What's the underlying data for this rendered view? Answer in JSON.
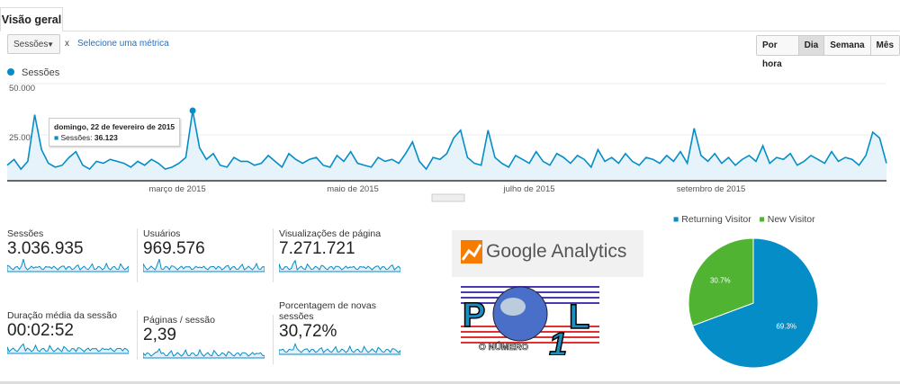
{
  "tab": {
    "label": "Visão geral"
  },
  "toolbar": {
    "metric": "Sessões",
    "remove": "x",
    "select_metric": "Selecione uma métrica",
    "granularity": [
      "Por hora",
      "Dia",
      "Semana",
      "Mês"
    ],
    "active": "Dia"
  },
  "chart_data": {
    "type": "area",
    "legend": "Sessões",
    "color": "#058dc7",
    "ylim": [
      0,
      50000
    ],
    "yticks": [
      "50.000",
      "25.000"
    ],
    "xticks": [
      "março de 2015",
      "maio de 2015",
      "julho de 2015",
      "setembro de 2015"
    ],
    "values": [
      8000,
      11000,
      6000,
      10000,
      34000,
      16000,
      9000,
      7000,
      8000,
      12000,
      15000,
      8000,
      6000,
      10000,
      9000,
      11000,
      10000,
      9000,
      7000,
      10000,
      8000,
      11000,
      9000,
      6000,
      7000,
      9000,
      12000,
      36123,
      17000,
      11000,
      14000,
      8000,
      7000,
      12000,
      10000,
      10000,
      8000,
      9000,
      13000,
      10000,
      7000,
      14000,
      11000,
      9000,
      11000,
      12000,
      8000,
      7000,
      13000,
      10000,
      15000,
      9000,
      8000,
      7000,
      12000,
      10000,
      11000,
      9000,
      14000,
      20000,
      10000,
      6000,
      12000,
      11000,
      14000,
      22000,
      26000,
      12000,
      9000,
      8000,
      26000,
      12000,
      9000,
      7000,
      13000,
      11000,
      9000,
      15000,
      10000,
      8000,
      14000,
      12000,
      9000,
      13000,
      11000,
      7000,
      16000,
      10000,
      12000,
      9000,
      14000,
      10000,
      8000,
      12000,
      11000,
      9000,
      13000,
      10000,
      15000,
      9000,
      27000,
      13000,
      10000,
      14000,
      9000,
      12000,
      8000,
      11000,
      13000,
      10000,
      18000,
      9000,
      12000,
      11000,
      14000,
      8000,
      10000,
      13000,
      11000,
      9000,
      15000,
      10000,
      12000,
      11000,
      8000,
      13000,
      25000,
      22000,
      9000
    ],
    "tooltip": {
      "date": "domingo, 22 de fevereiro de 2015",
      "label": "Sessões:",
      "value": "36.123"
    }
  },
  "metrics": [
    {
      "label": "Sessões",
      "value": "3.036.935"
    },
    {
      "label": "Usuários",
      "value": "969.576"
    },
    {
      "label": "Visualizações de página",
      "value": "7.271.721"
    },
    {
      "label": "Duração média da sessão",
      "value": "00:02:52"
    },
    {
      "label": "Páginas / sessão",
      "value": "2,39"
    },
    {
      "label": "Porcentagem de novas sessões",
      "value": "30,72%"
    }
  ],
  "logos": {
    "ga": "Google Analytics",
    "pol": "POL o número 1"
  },
  "pie": {
    "type": "pie",
    "slices": [
      {
        "name": "Returning Visitor",
        "value": 69.3,
        "label": "69.3%",
        "color": "#058dc7"
      },
      {
        "name": "New Visitor",
        "value": 30.7,
        "label": "30.7%",
        "color": "#50b432"
      }
    ],
    "legend": "top"
  }
}
